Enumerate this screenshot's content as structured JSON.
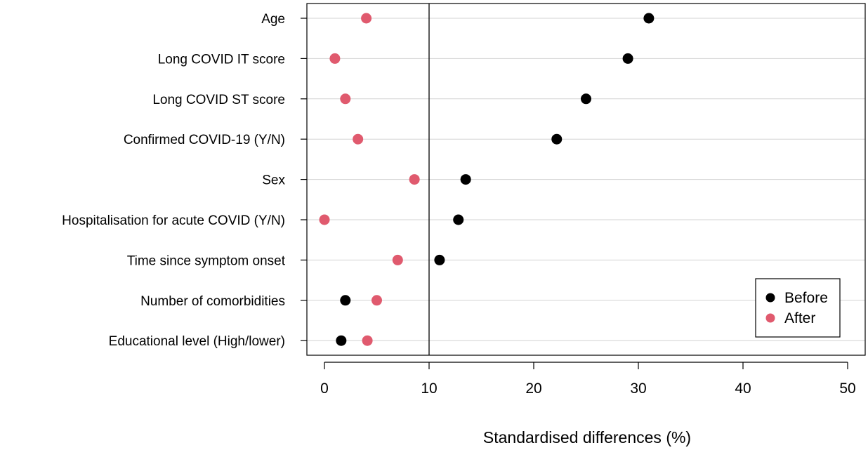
{
  "chart_data": {
    "type": "scatter",
    "orientation": "horizontal-dot-plot",
    "categories": [
      "Age",
      "Long COVID IT score",
      "Long COVID ST score",
      "Confirmed COVID-19 (Y/N)",
      "Sex",
      "Hospitalisation for acute COVID (Y/N)",
      "Time since symptom onset",
      "Number of comorbidities",
      "Educational level (High/lower)"
    ],
    "series": [
      {
        "name": "Before",
        "color": "#000000",
        "values": [
          31.0,
          29.0,
          25.0,
          22.2,
          13.5,
          12.8,
          11.0,
          2.0,
          1.6
        ]
      },
      {
        "name": "After",
        "color": "#E05A6E",
        "values": [
          4.0,
          1.0,
          2.0,
          3.2,
          8.6,
          0.0,
          7.0,
          5.0,
          4.1
        ]
      }
    ],
    "xlabel": "Standardised differences (%)",
    "ylabel": "",
    "xlim": [
      0,
      50
    ],
    "xticks": [
      "0",
      "10",
      "20",
      "30",
      "40",
      "50"
    ],
    "reference_line_x": 10,
    "grid": "horizontal",
    "legend_position": "bottom-right"
  }
}
